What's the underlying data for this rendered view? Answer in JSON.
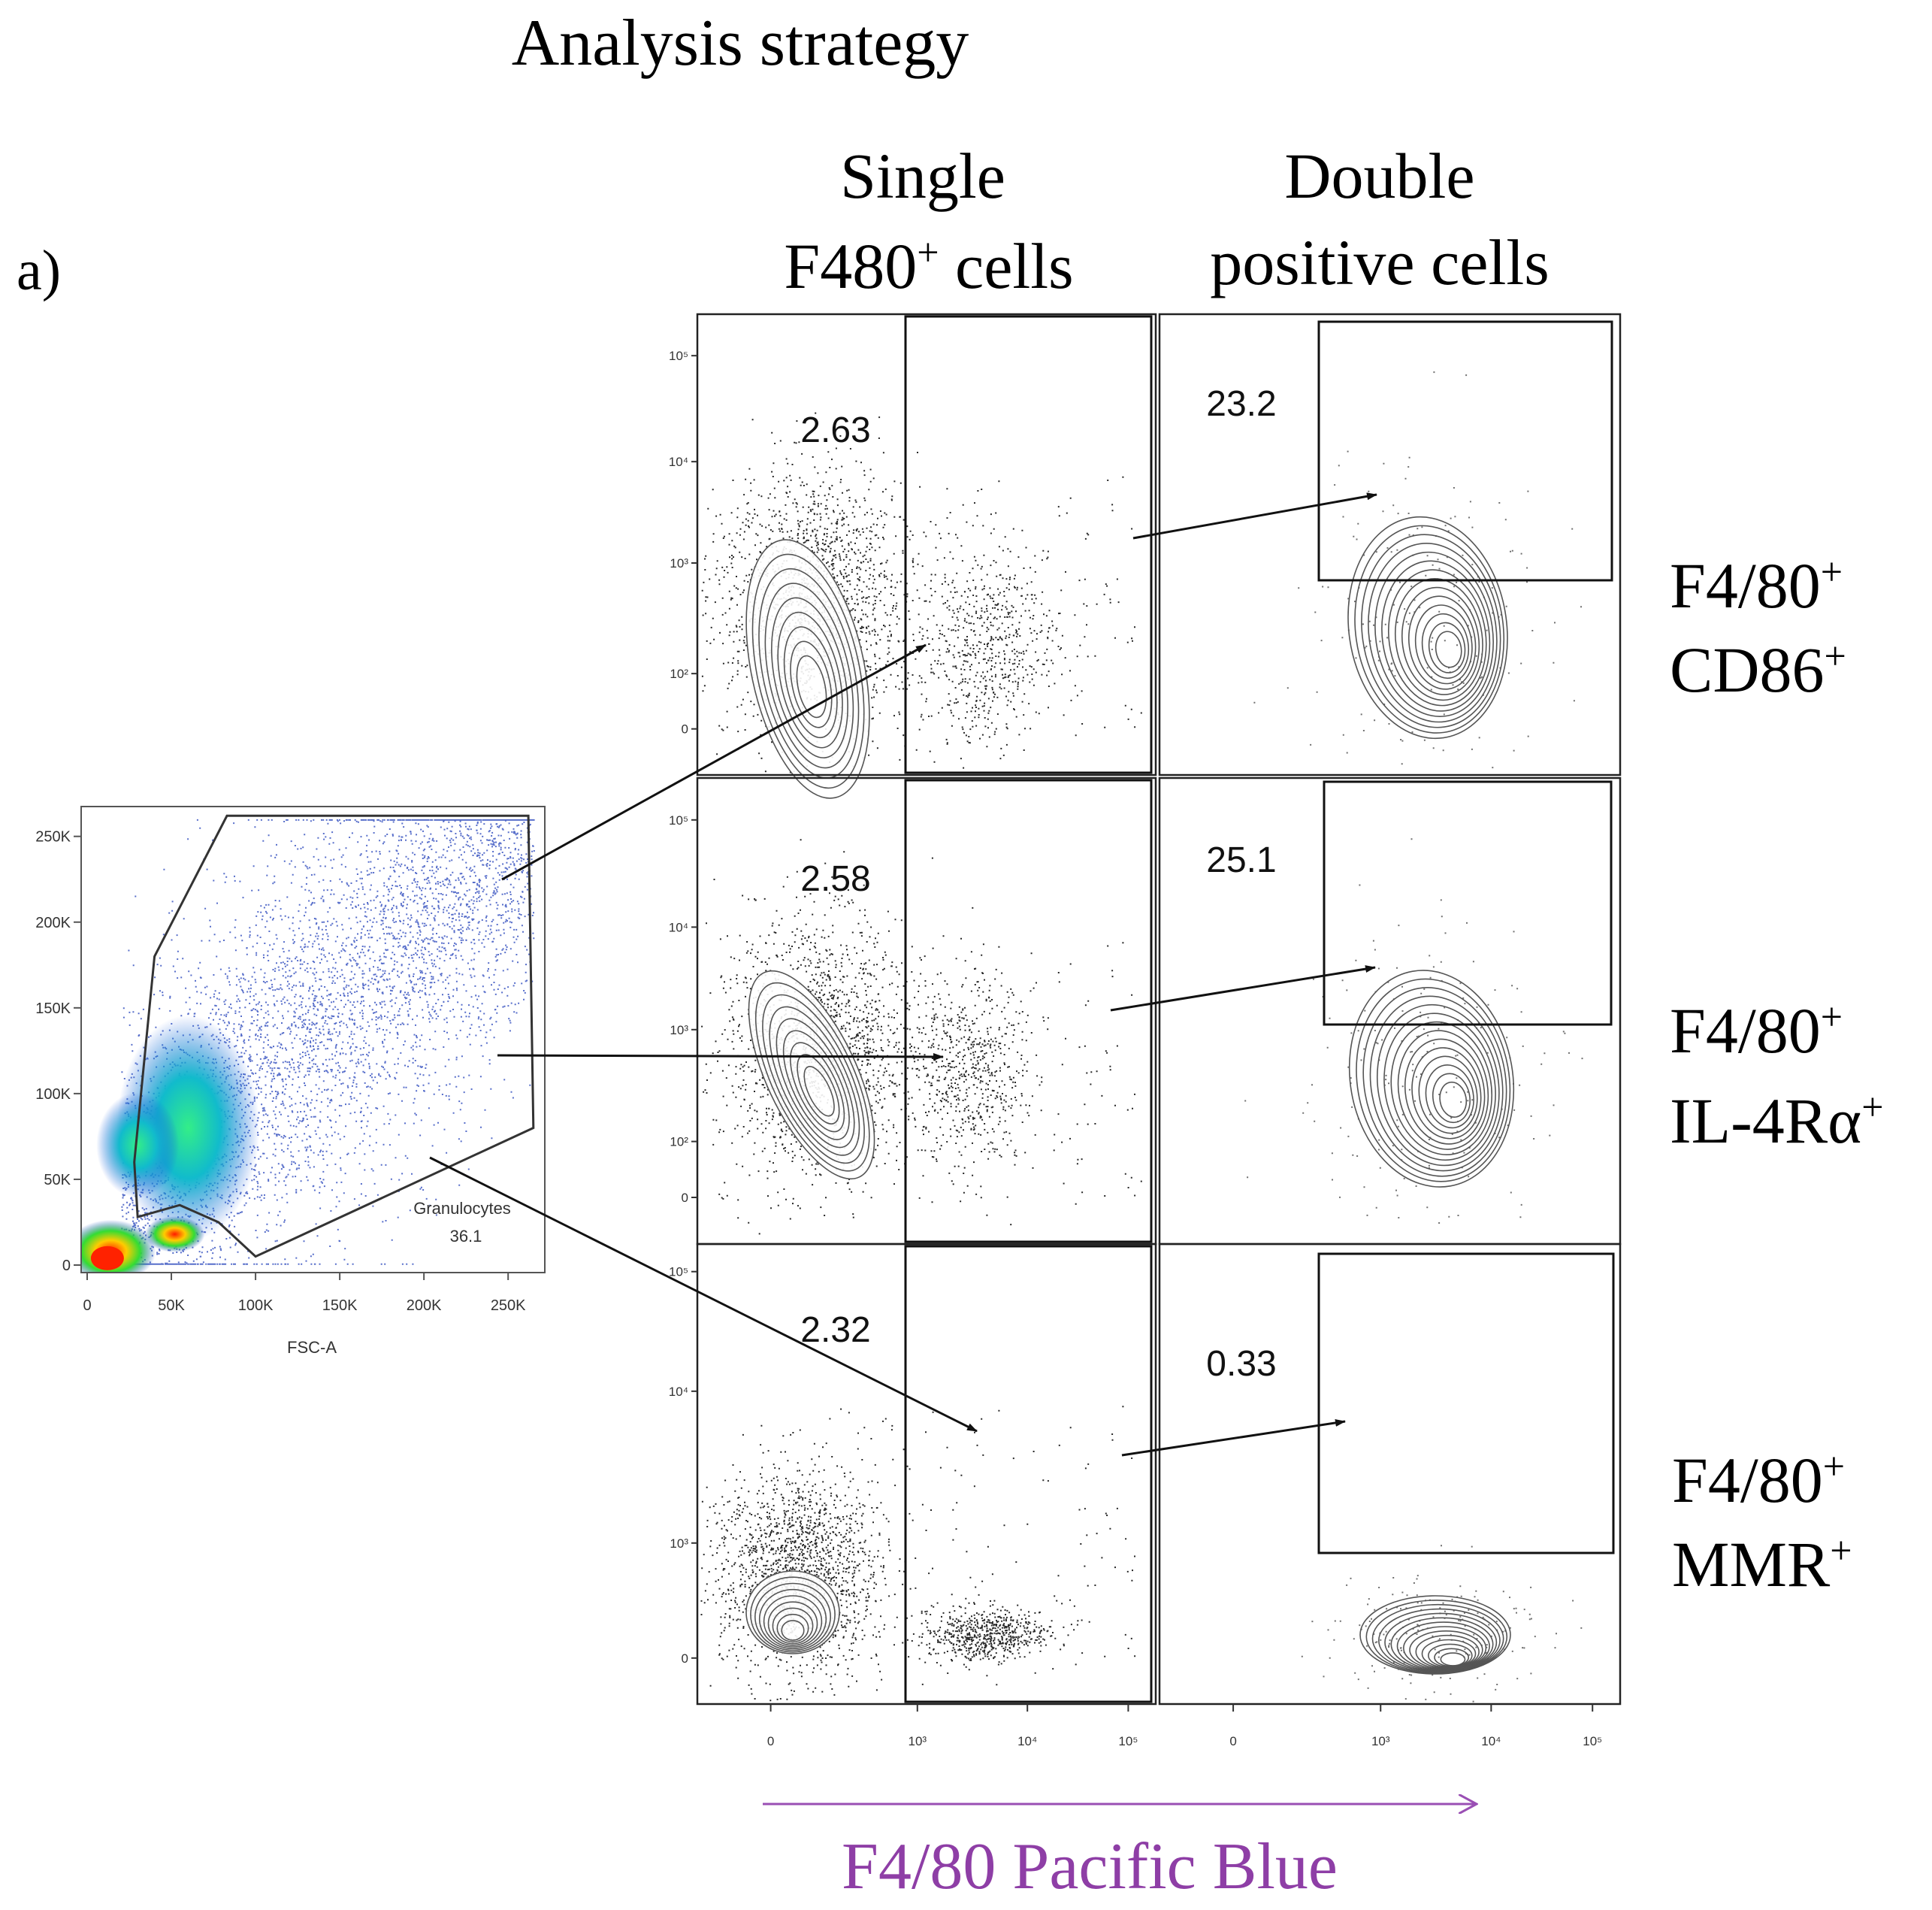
{
  "figure": {
    "title": "Analysis strategy",
    "panel_label": "a)",
    "col_headers": [
      {
        "line1": "Single",
        "line2": "F480",
        "line2_sup": "+",
        "line2_rest": " cells"
      },
      {
        "line1": "Double",
        "line2": "positive cells"
      }
    ],
    "row_labels": [
      {
        "line1": "F4/80",
        "sup1": "+",
        "line2": "CD86",
        "sup2": "+"
      },
      {
        "line1": "F4/80",
        "sup1": "+",
        "line2": "IL-4Rα",
        "sup2": "+"
      },
      {
        "line1": "F4/80",
        "sup1": "+",
        "line2": "MMR",
        "sup2": "+"
      }
    ],
    "xaxis_label": "F4/80 Pacific Blue",
    "colors": {
      "xaxis_label": "#8e3ea6",
      "arrow_purple": "#9a4fb4",
      "ink": "#111111"
    }
  },
  "chart_data": [
    {
      "type": "scatter",
      "name": "gate-plot",
      "title": "",
      "xlabel": "FSC-A",
      "ylabel": "",
      "xlim": [
        0,
        270000
      ],
      "ylim": [
        0,
        262144
      ],
      "xticks": [
        "0",
        "50K",
        "100K",
        "150K",
        "200K",
        "250K"
      ],
      "yticks": [
        "0",
        "50K",
        "100K",
        "150K",
        "200K",
        "250K"
      ],
      "gate": {
        "name": "Granulocytes",
        "percent": "36.1",
        "polygon": [
          [
            83000,
            262000
          ],
          [
            262000,
            262000
          ],
          [
            265000,
            80000
          ],
          [
            100000,
            5000
          ],
          [
            78000,
            25000
          ],
          [
            55000,
            35000
          ],
          [
            30000,
            28000
          ],
          [
            28000,
            60000
          ],
          [
            40000,
            180000
          ]
        ]
      }
    },
    {
      "type": "scatter",
      "name": "contour-plots",
      "axis": "biexponential",
      "xticks": [
        "0",
        "10³",
        "10⁴",
        "10⁵"
      ],
      "yticks": [
        "0",
        "10²",
        "10³",
        "10⁴",
        "10⁵"
      ],
      "rows": [
        {
          "marker": "CD86",
          "single_gate_percent": "2.63",
          "double_gate_percent": "23.2"
        },
        {
          "marker": "IL-4Rα",
          "single_gate_percent": "2.58",
          "double_gate_percent": "25.1"
        },
        {
          "marker": "MMR",
          "single_gate_percent": "2.32",
          "double_gate_percent": "0.33"
        }
      ]
    }
  ]
}
